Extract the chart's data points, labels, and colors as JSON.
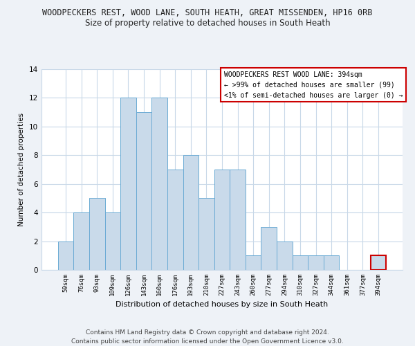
{
  "title_line1": "WOODPECKERS REST, WOOD LANE, SOUTH HEATH, GREAT MISSENDEN, HP16 0RB",
  "title_line2": "Size of property relative to detached houses in South Heath",
  "xlabel": "Distribution of detached houses by size in South Heath",
  "ylabel": "Number of detached properties",
  "categories": [
    "59sqm",
    "76sqm",
    "93sqm",
    "109sqm",
    "126sqm",
    "143sqm",
    "160sqm",
    "176sqm",
    "193sqm",
    "210sqm",
    "227sqm",
    "243sqm",
    "260sqm",
    "277sqm",
    "294sqm",
    "310sqm",
    "327sqm",
    "344sqm",
    "361sqm",
    "377sqm",
    "394sqm"
  ],
  "values": [
    2,
    4,
    5,
    4,
    12,
    11,
    12,
    7,
    8,
    5,
    7,
    7,
    1,
    3,
    2,
    1,
    1,
    1,
    0,
    0,
    1
  ],
  "bar_color": "#c9daea",
  "bar_edge_color": "#6aaad4",
  "highlight_index": 20,
  "annotation_text": "WOODPECKERS REST WOOD LANE: 394sqm\n← >99% of detached houses are smaller (99)\n<1% of semi-detached houses are larger (0) →",
  "annotation_box_color": "#ffffff",
  "annotation_box_edge_color": "#cc0000",
  "ylim": [
    0,
    14
  ],
  "yticks": [
    0,
    2,
    4,
    6,
    8,
    10,
    12,
    14
  ],
  "footer_line1": "Contains HM Land Registry data © Crown copyright and database right 2024.",
  "footer_line2": "Contains public sector information licensed under the Open Government Licence v3.0.",
  "background_color": "#eef2f7",
  "plot_bg_color": "#ffffff",
  "grid_color": "#c8d8e8"
}
